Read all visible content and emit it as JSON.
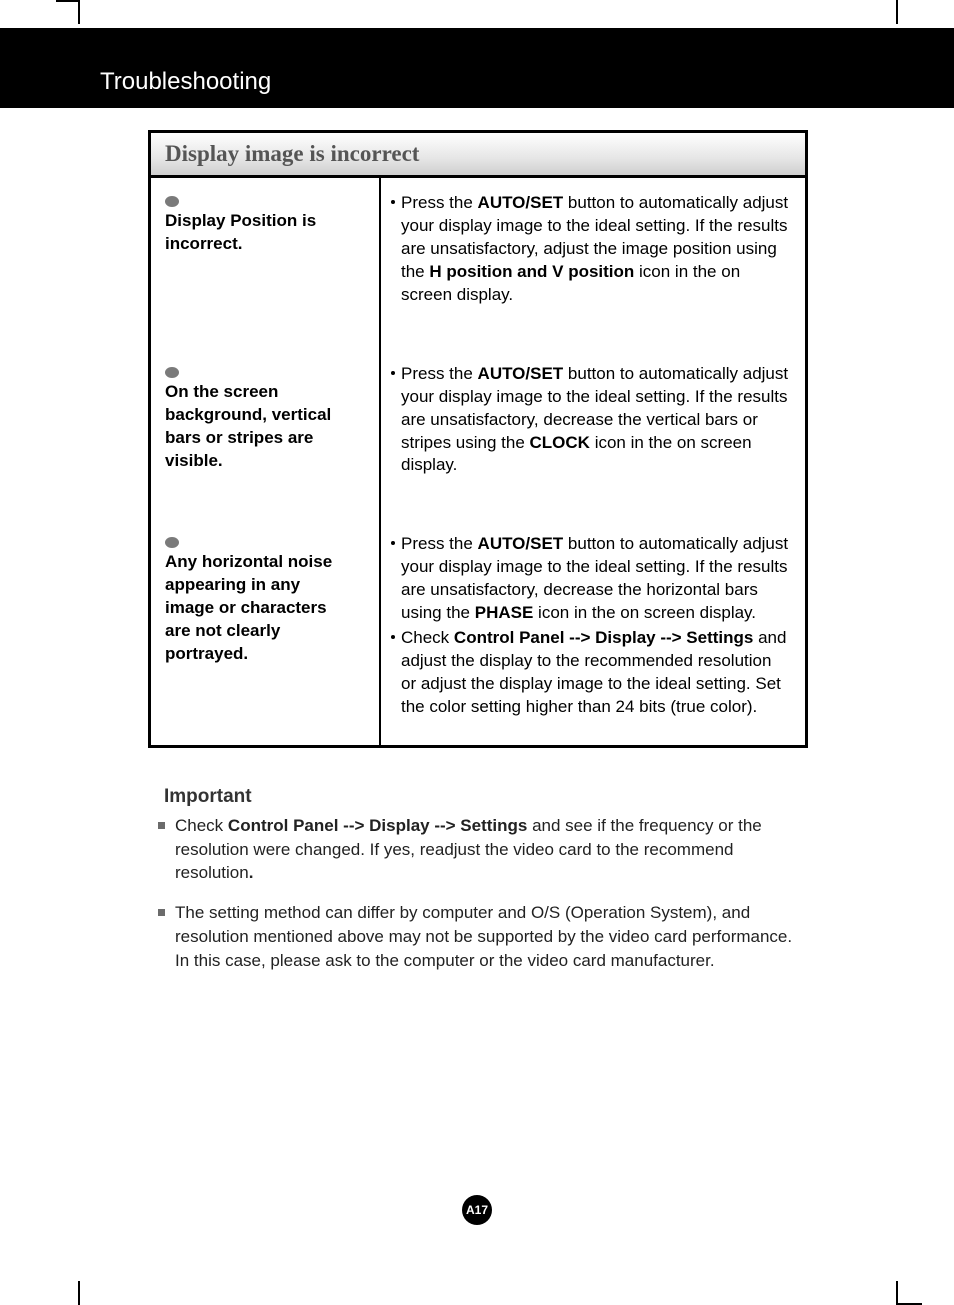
{
  "page": {
    "banner_title": "Troubleshooting",
    "page_number": "A17",
    "colors": {
      "banner_bg": "#000000",
      "banner_text": "#ffffff",
      "header_text": "#555555",
      "body_text": "#000000",
      "bullet_gray": "#7a7a7a",
      "background": "#ffffff"
    }
  },
  "table": {
    "header": "Display image is incorrect",
    "rows": [
      {
        "issue": "Display Position is incorrect.",
        "solution_pre": "Press the ",
        "solution_bold1": "AUTO/SET",
        "solution_mid1": " button to automatically adjust your display image to the ideal setting. If the results are unsatisfactory, adjust the image position using the ",
        "solution_bold2": "H position and V position",
        "solution_post": " icon in the on screen display."
      },
      {
        "issue": "On the screen background, vertical bars or stripes are visible.",
        "solution_pre": "Press the ",
        "solution_bold1": "AUTO/SET",
        "solution_mid1": " button to automatically adjust your display image to the ideal setting. If the results are unsatisfactory, decrease the vertical bars or stripes using the ",
        "solution_bold2": "CLOCK",
        "solution_post": " icon in the on screen display."
      },
      {
        "issue": "Any horizontal noise appearing in any image or characters are not clearly portrayed.",
        "solution_pre": "Press the ",
        "solution_bold1": "AUTO/SET",
        "solution_mid1": " button to automatically adjust your display image to the ideal setting. If the results are unsatisfactory, decrease the horizontal bars using the ",
        "solution_bold2": "PHASE",
        "solution_post": " icon in the on screen display.",
        "solution2_pre": "Check ",
        "solution2_bold": "Control Panel --> Display --> Settings",
        "solution2_post": " and adjust the display to the recommended resolution or adjust the display image to the ideal setting. Set the color setting higher than 24 bits (true color)."
      }
    ]
  },
  "important": {
    "title": "Important",
    "items": [
      {
        "pre": "Check ",
        "bold": "Control Panel --> Display --> Settings",
        "post": " and see if the frequency or the resolution were changed. If yes, readjust the video card to the recommend resolution",
        "bold2": "."
      },
      {
        "text": "The setting method can differ by computer and O/S (Operation System), and resolution mentioned above may not be supported by the video card performance. In this case, please ask to the computer or the video card manufacturer."
      }
    ]
  }
}
